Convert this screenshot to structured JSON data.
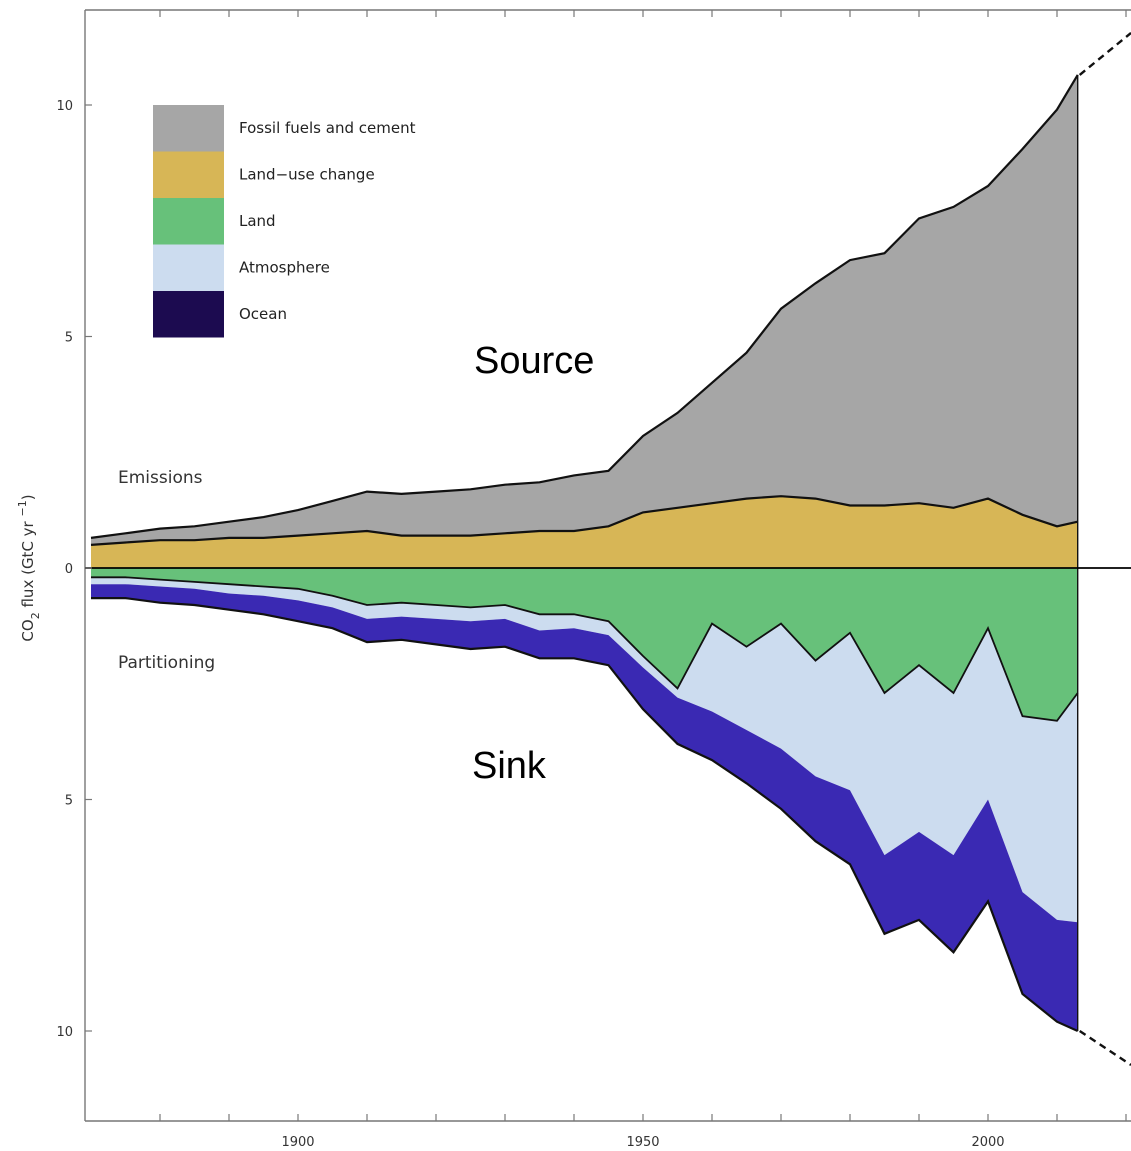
{
  "chart_data": {
    "type": "area",
    "ylabel": "CO₂ flux (GtC yr⁻¹)",
    "ylabel_parts": {
      "co": "CO",
      "sub": "2",
      "mid": " flux (GtC yr ",
      "sup": "−1",
      "end": ")"
    },
    "xlim": [
      1870,
      2020
    ],
    "ylim": [
      -12,
      12
    ],
    "y_axis_note": "absolute values shown on both sides of zero",
    "x_ticks": [
      {
        "value": 1900,
        "label": "1900"
      },
      {
        "value": 1950,
        "label": "1950"
      },
      {
        "value": 2000,
        "label": "2000"
      }
    ],
    "y_ticks": [
      {
        "value": 10,
        "label": "10"
      },
      {
        "value": 5,
        "label": "5"
      },
      {
        "value": 0,
        "label": "0"
      },
      {
        "value": -5,
        "label": "5"
      },
      {
        "value": -10,
        "label": "10"
      }
    ],
    "grid": false,
    "legend_position": "top-left",
    "annotations": {
      "source": "Source",
      "sink": "Sink",
      "emissions": "Emissions",
      "partitioning": "Partitioning"
    },
    "colors": {
      "fossil": "#a6a6a6",
      "landuse": "#d7b656",
      "land": "#67c17a",
      "atmosphere": "#ccdcef",
      "ocean": "#3a29b3",
      "ocean_legend": "#1c0b50"
    },
    "x": [
      1870,
      1875,
      1880,
      1885,
      1890,
      1895,
      1900,
      1905,
      1910,
      1915,
      1920,
      1925,
      1930,
      1935,
      1940,
      1945,
      1950,
      1955,
      1960,
      1965,
      1970,
      1975,
      1980,
      1985,
      1990,
      1995,
      2000,
      2005,
      2010,
      2013
    ],
    "series": [
      {
        "name": "Fossil fuels and cement",
        "color_key": "fossil",
        "values": [
          0.15,
          0.2,
          0.25,
          0.3,
          0.35,
          0.45,
          0.55,
          0.7,
          0.85,
          0.9,
          0.95,
          1.0,
          1.05,
          1.05,
          1.2,
          1.2,
          1.65,
          2.05,
          2.6,
          3.15,
          4.05,
          4.65,
          5.3,
          5.45,
          6.15,
          6.5,
          6.75,
          7.9,
          9.0,
          9.65
        ]
      },
      {
        "name": "Land−use change",
        "color_key": "landuse",
        "values": [
          0.5,
          0.55,
          0.6,
          0.6,
          0.65,
          0.65,
          0.7,
          0.75,
          0.8,
          0.7,
          0.7,
          0.7,
          0.75,
          0.8,
          0.8,
          0.9,
          1.2,
          1.3,
          1.4,
          1.5,
          1.55,
          1.5,
          1.35,
          1.35,
          1.4,
          1.3,
          1.5,
          1.15,
          0.9,
          1.0
        ]
      },
      {
        "name": "Land",
        "color_key": "land",
        "values": [
          -0.2,
          -0.2,
          -0.25,
          -0.3,
          -0.35,
          -0.4,
          -0.45,
          -0.6,
          -0.8,
          -0.75,
          -0.8,
          -0.85,
          -0.8,
          -1.0,
          -1.0,
          -1.15,
          -1.9,
          -2.6,
          -1.2,
          -1.7,
          -1.2,
          -2.0,
          -1.4,
          -2.7,
          -2.1,
          -2.7,
          -1.3,
          -3.2,
          -3.3,
          -2.7
        ]
      },
      {
        "name": "Atmosphere",
        "color_key": "atmosphere",
        "values": [
          -0.15,
          -0.15,
          -0.15,
          -0.15,
          -0.2,
          -0.2,
          -0.25,
          -0.25,
          -0.3,
          -0.3,
          -0.3,
          -0.3,
          -0.3,
          -0.35,
          -0.3,
          -0.3,
          -0.25,
          -0.2,
          -1.9,
          -1.8,
          -2.7,
          -2.5,
          -3.4,
          -3.5,
          -3.6,
          -3.5,
          -3.7,
          -3.8,
          -4.3,
          -4.95
        ]
      },
      {
        "name": "Ocean",
        "color_key": "ocean",
        "values": [
          -0.3,
          -0.3,
          -0.35,
          -0.35,
          -0.35,
          -0.4,
          -0.45,
          -0.45,
          -0.5,
          -0.5,
          -0.55,
          -0.6,
          -0.6,
          -0.6,
          -0.65,
          -0.65,
          -0.9,
          -1.0,
          -1.05,
          -1.15,
          -1.3,
          -1.4,
          -1.6,
          -1.7,
          -1.9,
          -2.1,
          -2.2,
          -2.2,
          -2.2,
          -2.35
        ]
      }
    ],
    "projection_note": "dashed lines continue beyond 2013 at both outer edges"
  }
}
